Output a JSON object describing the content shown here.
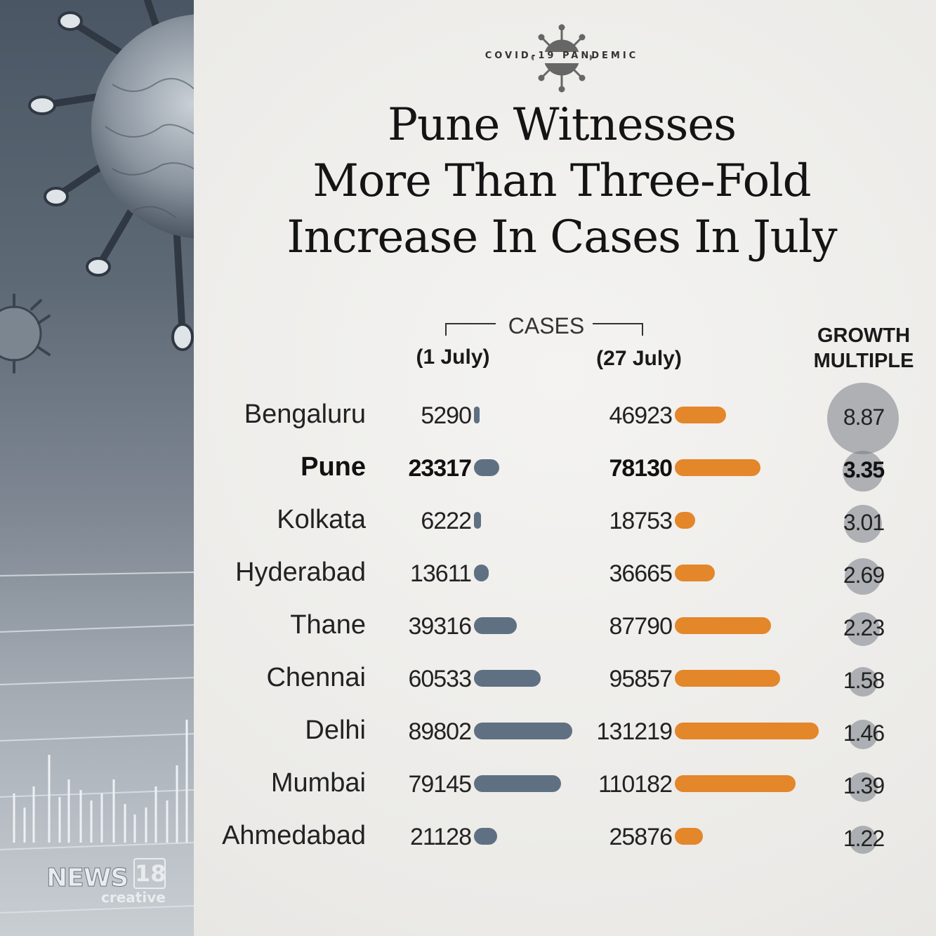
{
  "header": {
    "badge_text": "COVID-19 PANDEMIC",
    "title_lines": [
      "Pune Witnesses",
      "More Than Three-Fold",
      "Increase In Cases In July"
    ]
  },
  "chart_data": {
    "type": "bar",
    "group_label": "CASES",
    "col_july1": "(1 July)",
    "col_july27": "(27 July)",
    "col_growth": "GROWTH MULTIPLE",
    "categories": [
      "Bengaluru",
      "Pune",
      "Kolkata",
      "Hyderabad",
      "Thane",
      "Chennai",
      "Delhi",
      "Mumbai",
      "Ahmedabad"
    ],
    "series": [
      {
        "name": "(1 July)",
        "color": "#5f7082",
        "values": [
          5290,
          23317,
          6222,
          13611,
          39316,
          60533,
          89802,
          79145,
          21128
        ]
      },
      {
        "name": "(27 July)",
        "color": "#e4862a",
        "values": [
          46923,
          78130,
          18753,
          36665,
          87790,
          95857,
          131219,
          110182,
          25876
        ]
      }
    ],
    "growth_multiple": [
      "8.87",
      "3.35",
      "3.01",
      "2.69",
      "2.23",
      "1.58",
      "1.46",
      "1.39",
      "1.22"
    ],
    "highlight": "Pune"
  },
  "branding": {
    "logo_word": "NEWS",
    "logo_number": "18",
    "logo_sub": "creative"
  },
  "colors": {
    "july1_bar": "#5f7082",
    "july27_bar": "#e4862a",
    "bubble": "#787e86"
  }
}
